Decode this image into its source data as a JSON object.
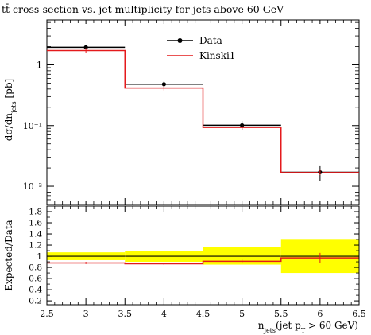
{
  "chart_data": [
    {
      "type": "line",
      "subtype": "histogram-step",
      "title": "tt̄ cross-section vs. jet multiplicity for jets above 60 GeV",
      "ylabel": "dσ/dn_jets [pb]",
      "yscale": "log",
      "ylim": [
        0.005,
        5.5
      ],
      "xlim": [
        2.5,
        6.5
      ],
      "y_tick_labels": [
        "1",
        "10⁻¹",
        "10⁻²"
      ],
      "legend_position": "top-right",
      "bins": [
        [
          2.5,
          3.5
        ],
        [
          3.5,
          4.5
        ],
        [
          4.5,
          5.5
        ],
        [
          5.5,
          6.5
        ]
      ],
      "series": [
        {
          "name": "Data",
          "style": "points-with-errors",
          "color": "#000000",
          "x": [
            3,
            4,
            5,
            6
          ],
          "y": [
            1.95,
            0.48,
            0.101,
            0.017
          ],
          "yerr": [
            0.1,
            0.05,
            0.017,
            0.005
          ]
        },
        {
          "name": "Kinski1",
          "style": "histogram",
          "color": "#e41a1c",
          "x": [
            3,
            4,
            5,
            6
          ],
          "y": [
            1.72,
            0.415,
            0.093,
            0.0168
          ]
        }
      ]
    },
    {
      "type": "line",
      "subtype": "ratio",
      "ylabel": "Expected/Data",
      "xlabel": "n_jets(jet p_T > 60 GeV)",
      "ylim": [
        0.13,
        1.9
      ],
      "xlim": [
        2.5,
        6.5
      ],
      "y_ticks": [
        0.2,
        0.4,
        0.6,
        0.8,
        1,
        1.2,
        1.4,
        1.6,
        1.8
      ],
      "y_tick_labels": [
        "0.2",
        "0.4",
        "0.6",
        "0.8",
        "1",
        "1.2",
        "1.4",
        "1.6",
        "1.8"
      ],
      "x_ticks": [
        2.5,
        3,
        3.5,
        4,
        4.5,
        5,
        5.5,
        6,
        6.5
      ],
      "x_tick_labels": [
        "2.5",
        "3",
        "3.5",
        "4",
        "4.5",
        "5",
        "5.5",
        "6",
        "6.5"
      ],
      "band": {
        "color": "#ffff00",
        "low": [
          0.93,
          0.9,
          0.85,
          0.7
        ],
        "high": [
          1.07,
          1.1,
          1.17,
          1.31
        ]
      },
      "series": [
        {
          "name": "Kinski1",
          "color": "#e41a1c",
          "x": [
            3,
            4,
            5,
            6
          ],
          "y": [
            0.88,
            0.865,
            0.91,
            0.97
          ],
          "yerr": [
            0.02,
            0.02,
            0.03,
            0.09
          ]
        }
      ]
    }
  ]
}
